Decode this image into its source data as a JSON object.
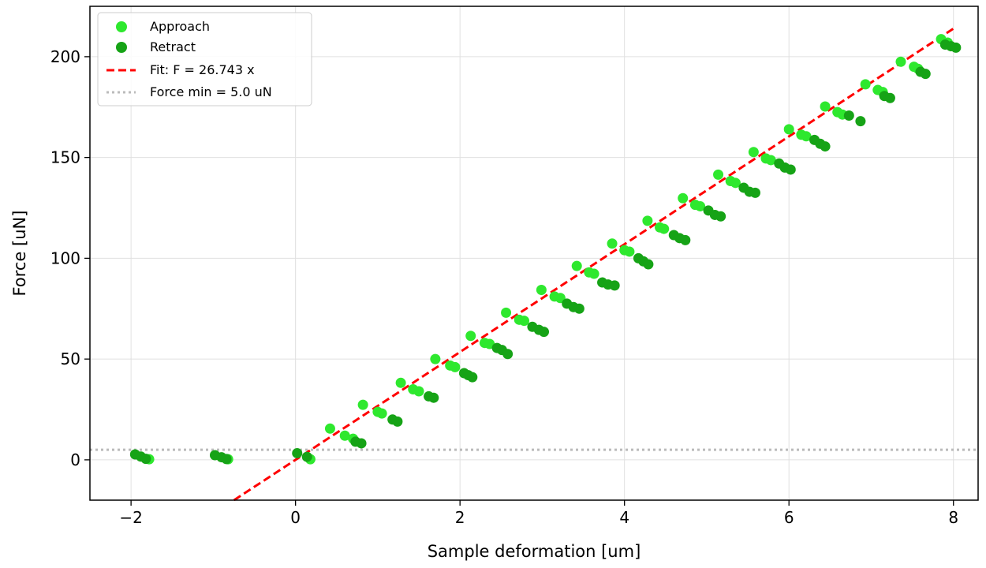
{
  "chart_data": {
    "type": "scatter",
    "title": "",
    "xlabel": "Sample deformation [um]",
    "ylabel": "Force [uN]",
    "xlim": [
      -2.5,
      8.3
    ],
    "ylim": [
      -20,
      225
    ],
    "x_ticks": [
      -2,
      0,
      2,
      4,
      6,
      8
    ],
    "x_tick_labels": [
      "−2",
      "0",
      "2",
      "4",
      "6",
      "8"
    ],
    "y_ticks": [
      0,
      50,
      100,
      150,
      200
    ],
    "y_tick_labels": [
      "0",
      "50",
      "100",
      "150",
      "200"
    ],
    "grid": true,
    "legend_position": "top-left",
    "series": [
      {
        "name": "Approach",
        "kind": "scatter",
        "color": "#2ee82e",
        "points": [
          [
            -1.78,
            0.3
          ],
          [
            -0.82,
            0.3
          ],
          [
            0.18,
            0.3
          ],
          [
            0.42,
            15.5
          ],
          [
            0.6,
            12.0
          ],
          [
            0.7,
            10.5
          ],
          [
            0.82,
            27.3
          ],
          [
            1.0,
            23.8
          ],
          [
            1.05,
            23.0
          ],
          [
            1.28,
            38.2
          ],
          [
            1.43,
            35.0
          ],
          [
            1.5,
            34.0
          ],
          [
            1.7,
            50.0
          ],
          [
            1.88,
            46.8
          ],
          [
            1.94,
            46.0
          ],
          [
            2.13,
            61.5
          ],
          [
            2.3,
            58.0
          ],
          [
            2.36,
            57.5
          ],
          [
            2.56,
            73.0
          ],
          [
            2.72,
            69.5
          ],
          [
            2.78,
            69.0
          ],
          [
            2.99,
            84.3
          ],
          [
            3.15,
            81.0
          ],
          [
            3.22,
            80.3
          ],
          [
            3.42,
            96.2
          ],
          [
            3.57,
            93.0
          ],
          [
            3.63,
            92.3
          ],
          [
            3.85,
            107.3
          ],
          [
            4.0,
            104.0
          ],
          [
            4.06,
            103.3
          ],
          [
            4.28,
            118.6
          ],
          [
            4.43,
            115.3
          ],
          [
            4.48,
            114.6
          ],
          [
            4.71,
            129.8
          ],
          [
            4.86,
            126.5
          ],
          [
            4.92,
            125.8
          ],
          [
            5.14,
            141.5
          ],
          [
            5.29,
            138.3
          ],
          [
            5.35,
            137.4
          ],
          [
            5.57,
            152.7
          ],
          [
            5.72,
            149.5
          ],
          [
            5.78,
            148.7
          ],
          [
            6.0,
            164.0
          ],
          [
            6.15,
            161.3
          ],
          [
            6.21,
            160.5
          ],
          [
            6.44,
            175.3
          ],
          [
            6.59,
            172.5
          ],
          [
            6.65,
            171.3
          ],
          [
            6.93,
            186.3
          ],
          [
            7.08,
            183.5
          ],
          [
            7.14,
            182.5
          ],
          [
            7.36,
            197.5
          ],
          [
            7.52,
            195.0
          ],
          [
            7.57,
            194.0
          ],
          [
            7.85,
            208.7
          ],
          [
            7.93,
            207.0
          ]
        ]
      },
      {
        "name": "Retract",
        "kind": "scatter",
        "color": "#16a316",
        "points": [
          [
            -1.95,
            2.7
          ],
          [
            -1.88,
            1.6
          ],
          [
            -1.82,
            0.5
          ],
          [
            -0.98,
            2.3
          ],
          [
            -0.9,
            1.3
          ],
          [
            -0.84,
            0.4
          ],
          [
            0.02,
            3.3
          ],
          [
            0.14,
            1.5
          ],
          [
            0.73,
            9.0
          ],
          [
            0.8,
            8.2
          ],
          [
            1.18,
            20.0
          ],
          [
            1.24,
            19.0
          ],
          [
            1.62,
            31.5
          ],
          [
            1.68,
            30.8
          ],
          [
            2.05,
            43.0
          ],
          [
            2.1,
            42.0
          ],
          [
            2.15,
            41.0
          ],
          [
            2.45,
            55.5
          ],
          [
            2.51,
            54.5
          ],
          [
            2.58,
            52.5
          ],
          [
            2.88,
            66.0
          ],
          [
            2.96,
            64.5
          ],
          [
            3.02,
            63.5
          ],
          [
            3.3,
            77.5
          ],
          [
            3.38,
            75.8
          ],
          [
            3.45,
            75.0
          ],
          [
            3.73,
            88.0
          ],
          [
            3.8,
            87.0
          ],
          [
            3.88,
            86.5
          ],
          [
            4.17,
            100.0
          ],
          [
            4.23,
            98.5
          ],
          [
            4.29,
            97.0
          ],
          [
            4.6,
            111.5
          ],
          [
            4.67,
            110.0
          ],
          [
            4.74,
            109.0
          ],
          [
            5.02,
            123.7
          ],
          [
            5.1,
            121.5
          ],
          [
            5.17,
            120.8
          ],
          [
            5.45,
            135.0
          ],
          [
            5.52,
            133.0
          ],
          [
            5.59,
            132.5
          ],
          [
            5.88,
            147.0
          ],
          [
            5.95,
            145.0
          ],
          [
            6.02,
            144.0
          ],
          [
            6.31,
            158.7
          ],
          [
            6.38,
            156.8
          ],
          [
            6.44,
            155.5
          ],
          [
            6.73,
            170.8
          ],
          [
            6.87,
            168.0
          ],
          [
            7.16,
            180.5
          ],
          [
            7.23,
            179.5
          ],
          [
            7.6,
            192.5
          ],
          [
            7.66,
            191.5
          ],
          [
            7.9,
            206.0
          ],
          [
            7.97,
            205.2
          ],
          [
            8.03,
            204.5
          ]
        ]
      }
    ],
    "fit": {
      "name": "Fit: F = 26.743 x",
      "slope": 26.743,
      "x_range": [
        -0.75,
        8.0
      ],
      "color": "#ff0000",
      "style": "dashed"
    },
    "threshold": {
      "name": "Force min = 5.0 uN",
      "value": 5.0,
      "color": "#bbbbbb",
      "style": "dotted"
    }
  }
}
